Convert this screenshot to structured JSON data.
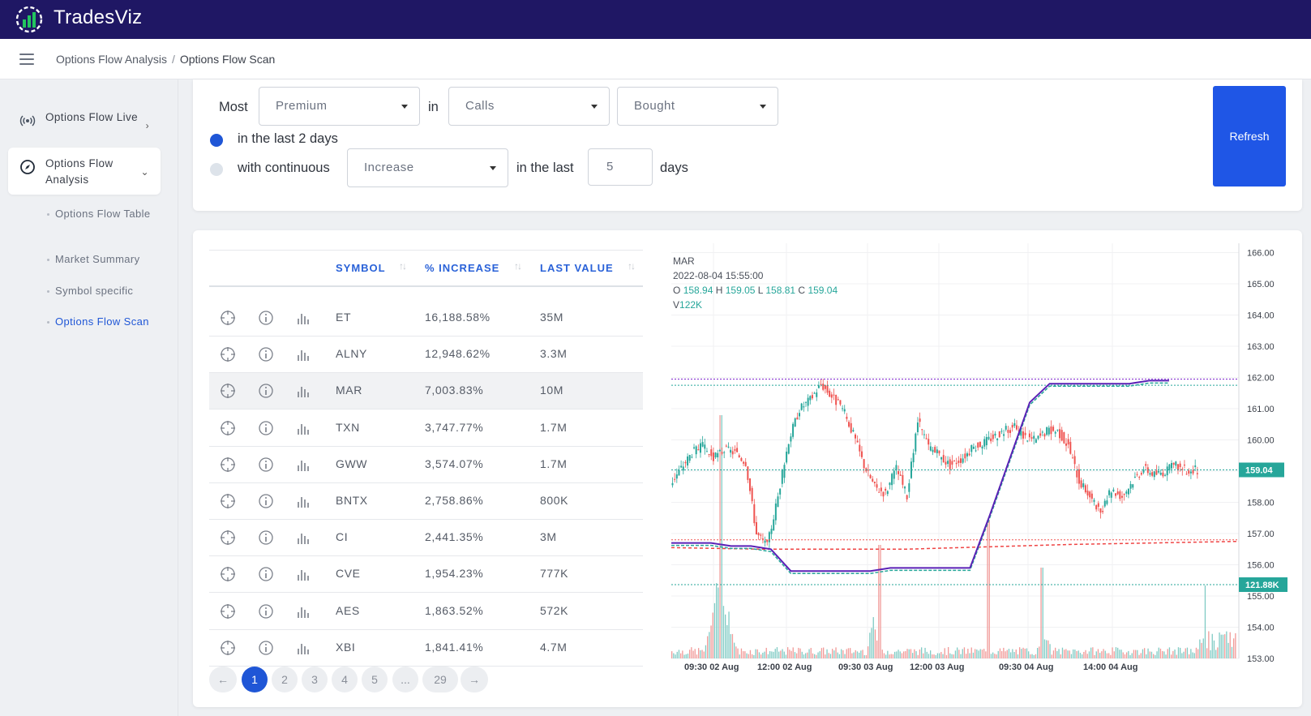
{
  "app": {
    "name": "TradesViz"
  },
  "breadcrumb": {
    "parent": "Options Flow Analysis",
    "separator": "/",
    "current": "Options Flow Scan"
  },
  "sidebar": {
    "items": [
      {
        "label": "Options Flow Live",
        "icon": "broadcast-icon"
      },
      {
        "label": "Options Flow Analysis",
        "icon": "compass-icon"
      }
    ],
    "sub_items": [
      {
        "label": "Options Flow Table"
      },
      {
        "label": "Market Summary"
      },
      {
        "label": "Symbol specific"
      },
      {
        "label": "Options Flow Scan"
      }
    ]
  },
  "scan": {
    "most_label": "Most",
    "metric": "Premium",
    "in_label": "in",
    "option_type": "Calls",
    "side": "Bought",
    "radio_last_label": "in the last 2 days",
    "radio_cont_label": "with continuous",
    "trend": "Increase",
    "in_the_last_label": "in the last",
    "days_value": "5",
    "days_label": "days",
    "refresh_label": "Refresh"
  },
  "table": {
    "columns": [
      "SYMBOL",
      "% INCREASE",
      "LAST VALUE"
    ],
    "sort_glyph": "↑↓",
    "rows": [
      {
        "symbol": "ET",
        "increase": "16,188.58%",
        "last": "35M"
      },
      {
        "symbol": "ALNY",
        "increase": "12,948.62%",
        "last": "3.3M"
      },
      {
        "symbol": "MAR",
        "increase": "7,003.83%",
        "last": "10M"
      },
      {
        "symbol": "TXN",
        "increase": "3,747.77%",
        "last": "1.7M"
      },
      {
        "symbol": "GWW",
        "increase": "3,574.07%",
        "last": "1.7M"
      },
      {
        "symbol": "BNTX",
        "increase": "2,758.86%",
        "last": "800K"
      },
      {
        "symbol": "CI",
        "increase": "2,441.35%",
        "last": "3M"
      },
      {
        "symbol": "CVE",
        "increase": "1,954.23%",
        "last": "777K"
      },
      {
        "symbol": "AES",
        "increase": "1,863.52%",
        "last": "572K"
      },
      {
        "symbol": "XBI",
        "increase": "1,841.41%",
        "last": "4.7M"
      }
    ]
  },
  "pagination": {
    "prev": "←",
    "pages": [
      "1",
      "2",
      "3",
      "4",
      "5",
      "...",
      "29"
    ],
    "next": "→",
    "current": "1"
  },
  "chart_legend": {
    "symbol": "MAR",
    "datetime": "2022-08-04 15:55:00",
    "o_label": "O",
    "o": "158.94",
    "h_label": "H",
    "h": "159.05",
    "l_label": "L",
    "l": "158.81",
    "c_label": "C",
    "c": "159.04",
    "v_label": "V",
    "v": "122K"
  },
  "chart_data": {
    "type": "line",
    "title": "",
    "xlabel": "",
    "ylabel": "",
    "x_ticks": [
      "09:30 02 Aug",
      "12:00 02 Aug",
      "09:30 03 Aug",
      "12:00 03 Aug",
      "09:30 04 Aug",
      "14:00 04 Aug"
    ],
    "y_ticks": [
      "166.00",
      "165.00",
      "164.00",
      "163.00",
      "162.00",
      "161.00",
      "160.00",
      "159.00",
      "158.00",
      "157.00",
      "156.00",
      "155.00",
      "154.00",
      "153.00"
    ],
    "ylim": [
      153,
      166.3
    ],
    "price_label": "159.04",
    "volume_label": "121.88K",
    "series": [
      {
        "values": [
          158.6,
          159.1,
          159.6,
          159.8,
          159.4,
          159.7,
          159.6,
          159.3,
          157.0,
          156.6,
          158.2,
          160.0,
          161.0,
          161.3,
          161.8,
          161.4,
          161.0,
          160.2,
          159.2,
          158.5,
          158.3,
          159.1,
          158.2,
          160.6,
          159.8,
          159.5,
          159.2,
          159.4,
          159.7,
          159.9,
          160.1,
          160.3,
          160.4,
          160.1,
          160.0,
          160.3,
          160.3,
          159.8,
          158.7,
          158.2,
          157.6,
          158.4,
          158.2,
          158.7,
          159.1,
          158.9,
          159.0,
          159.2,
          159.0,
          159.04
        ]
      },
      {
        "values": [
          156.7,
          156.7,
          156.7,
          156.6,
          156.6,
          156.5,
          155.8,
          155.8,
          155.8,
          155.8,
          155.8,
          155.9,
          155.9,
          155.9,
          155.9,
          155.9,
          157.6,
          159.4,
          161.2,
          161.8,
          161.8,
          161.8,
          161.8,
          161.8,
          161.9,
          161.9
        ]
      }
    ],
    "grid": true,
    "reference_lines": [
      161.95,
      161.75,
      159.04,
      156.8
    ]
  },
  "colors": {
    "nav": "#1f1764",
    "accent": "#1f56d6",
    "up": "#26a69a",
    "down": "#ef5350",
    "line": "#5b21b6",
    "label_bg": "#26a69a"
  }
}
